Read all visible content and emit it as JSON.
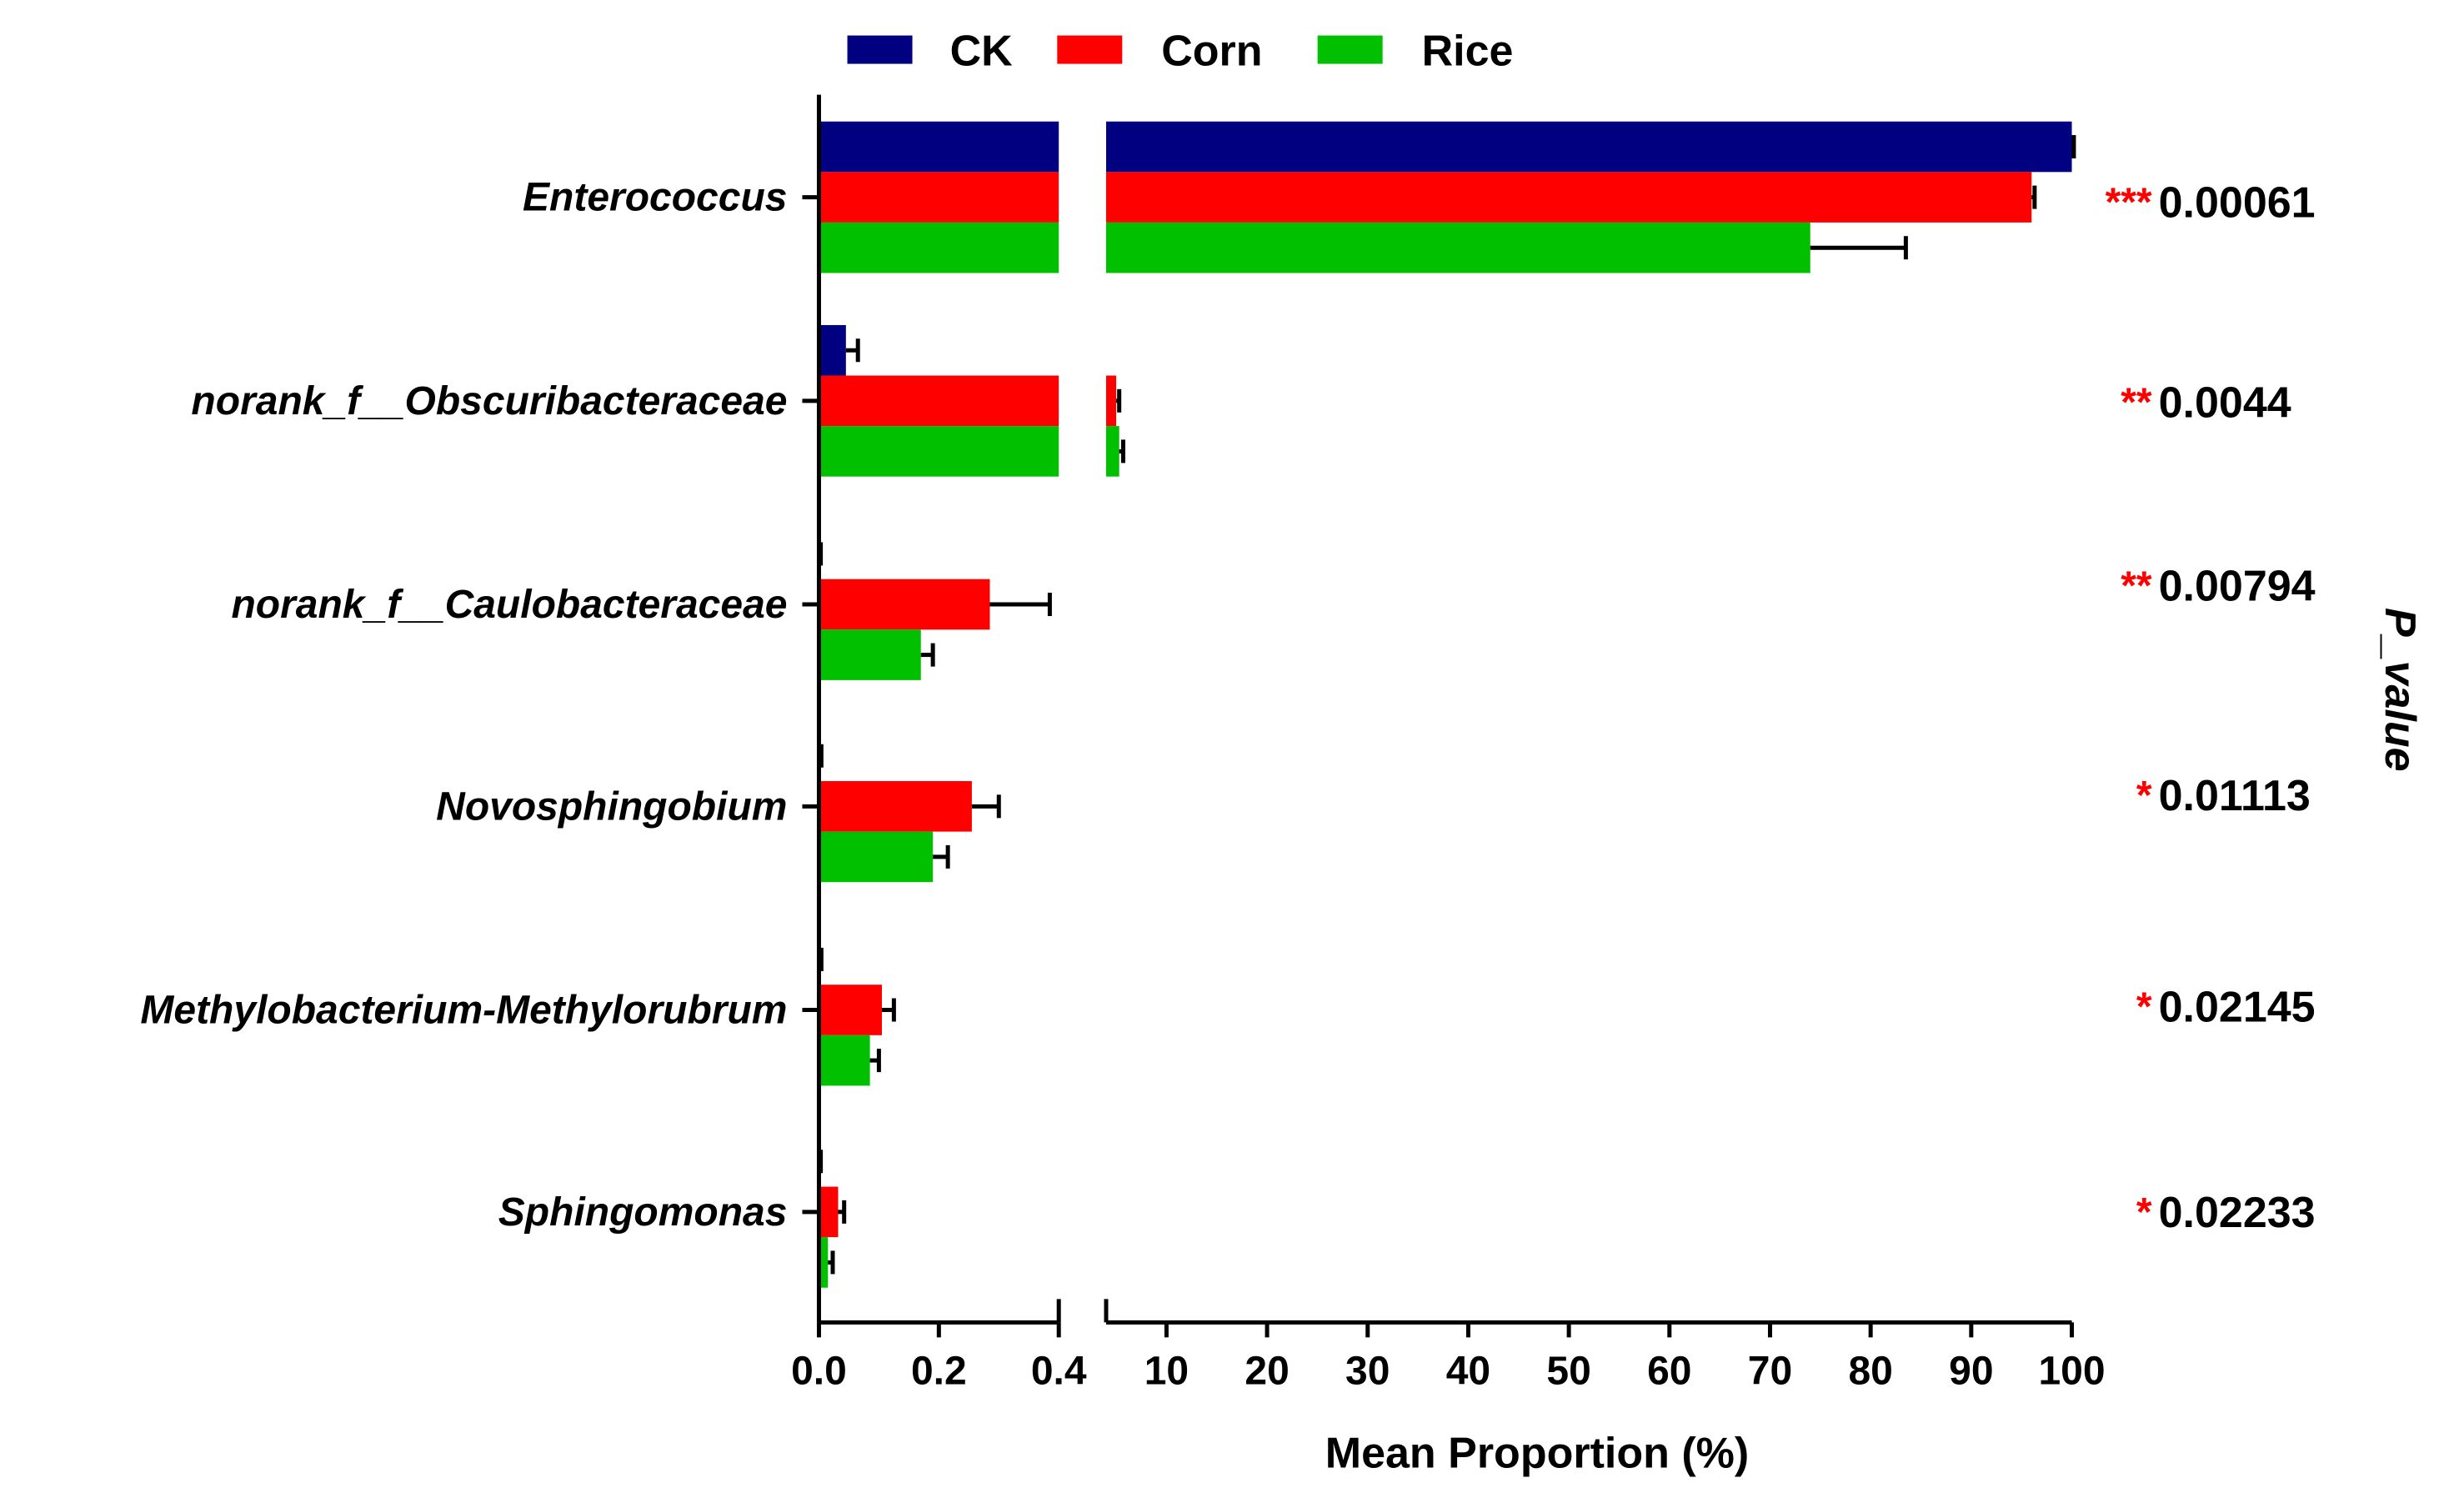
{
  "chart_data": {
    "type": "bar",
    "orientation": "horizontal",
    "xlabel": "Mean Proportion (%)",
    "right_label": "P_value",
    "axis_break": true,
    "x_segment_low": {
      "range": [
        0,
        0.4
      ],
      "ticks": [
        "0.0",
        "0.2",
        "0.4"
      ]
    },
    "x_segment_high": {
      "range": [
        4,
        100
      ],
      "ticks": [
        "10",
        "20",
        "30",
        "40",
        "50",
        "60",
        "70",
        "80",
        "90",
        "100"
      ]
    },
    "legend": {
      "placement": "top"
    },
    "categories": [
      "Enterococcus",
      "norank_f__Obscuribacteraceae",
      "norank_f__Caulobacteraceae",
      "Novosphingobium",
      "Methylobacterium-Methylorubrum",
      "Sphingomonas"
    ],
    "series": [
      {
        "name": "CK",
        "color": "#000080",
        "values": [
          100,
          0.045,
          0.0,
          0.0,
          0.0,
          0.0
        ],
        "errors": [
          0.2,
          0.02,
          0.003,
          0.004,
          0.004,
          0.003
        ]
      },
      {
        "name": "Corn",
        "color": "#ff0000",
        "values": [
          96,
          5.0,
          0.285,
          0.255,
          0.105,
          0.032
        ],
        "errors": [
          0.3,
          0.3,
          0.1,
          0.045,
          0.02,
          0.01
        ]
      },
      {
        "name": "Rice",
        "color": "#00c000",
        "values": [
          74,
          5.3,
          0.17,
          0.19,
          0.085,
          0.015
        ],
        "errors": [
          9.5,
          0.4,
          0.02,
          0.025,
          0.015,
          0.008
        ]
      }
    ],
    "p_values": [
      "0.00061",
      "0.0044",
      "0.00794",
      "0.01113",
      "0.02145",
      "0.02233"
    ],
    "significance": [
      "***",
      "**",
      "**",
      "*",
      "*",
      "*"
    ],
    "significance_color": "#ff0000"
  }
}
